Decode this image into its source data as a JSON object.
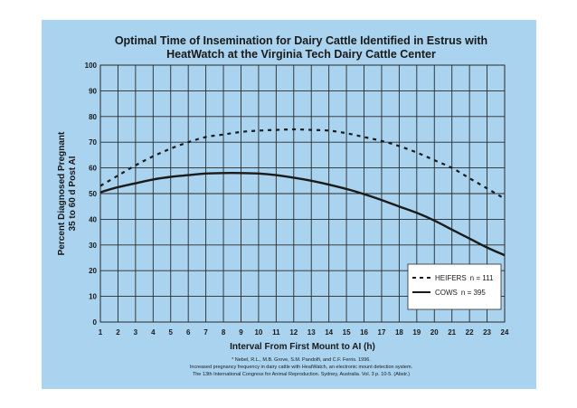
{
  "chart_data": {
    "type": "line",
    "title_lines": [
      "Optimal Time of Insemination for Dairy Cattle Identified in Estrus with",
      "HeatWatch at the Virginia Tech Dairy Cattle Center"
    ],
    "xlabel": "Interval From First Mount to AI (h)",
    "ylabel_lines": [
      "Percent Diagnosed Pregnant",
      "35 to 60 d Post AI"
    ],
    "x_ticks": [
      1,
      2,
      3,
      4,
      5,
      6,
      7,
      8,
      9,
      10,
      11,
      12,
      13,
      14,
      15,
      16,
      17,
      18,
      19,
      20,
      21,
      22,
      23,
      24
    ],
    "y_ticks": [
      0,
      10,
      20,
      30,
      40,
      50,
      60,
      70,
      80,
      90,
      100
    ],
    "xlim": [
      1,
      24
    ],
    "ylim": [
      0,
      100
    ],
    "grid": true,
    "legend_position": "bottom-right",
    "series": [
      {
        "name": "HEIFERS",
        "n_label": "n = 111",
        "style": "dashed",
        "color": "#1a1a1a",
        "x": [
          1,
          2,
          3,
          4,
          5,
          6,
          7,
          8,
          9,
          10,
          11,
          12,
          13,
          14,
          15,
          16,
          17,
          18,
          19,
          20,
          21,
          22,
          23,
          24
        ],
        "values": [
          53,
          57,
          61,
          64.5,
          67.5,
          70,
          72,
          73,
          74,
          74.5,
          74.8,
          75,
          74.8,
          74.5,
          73.5,
          72,
          70.5,
          68.5,
          66,
          63,
          60,
          56,
          52,
          48
        ]
      },
      {
        "name": "COWS",
        "n_label": "n = 395",
        "style": "solid",
        "color": "#1a1a1a",
        "x": [
          1,
          2,
          3,
          4,
          5,
          6,
          7,
          8,
          9,
          10,
          11,
          12,
          13,
          14,
          15,
          16,
          17,
          18,
          19,
          20,
          21,
          22,
          23,
          24
        ],
        "values": [
          50.5,
          52.5,
          54,
          55.5,
          56.5,
          57.2,
          57.8,
          58,
          58,
          57.8,
          57.2,
          56.2,
          55,
          53.5,
          51.8,
          49.8,
          47.5,
          45,
          42.5,
          39.5,
          36,
          32.5,
          29,
          26
        ]
      }
    ],
    "citation_lines": [
      "* Nebel, R.L., M.B. Grove, S.M. Pandolfi, and C.F. Ferris. 1996.",
      "Increased pregnancy frequency in dairy cattle with HeatWatch, an electronic mount detection system.",
      "The 13th International Congress for Animal Reproduction. Sydney, Australia. Vol. 3 p. 10-5. (Abstr.)"
    ]
  }
}
